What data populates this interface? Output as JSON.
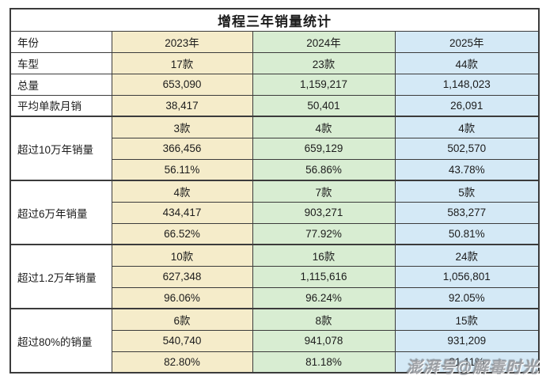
{
  "watermark": {
    "text": "澎湃号@解毒时光"
  },
  "colors": {
    "col_2023_bg": "#f5ecca",
    "col_2024_bg": "#d8edd2",
    "col_2025_bg": "#d4e9f6",
    "border": "#3b3b3b",
    "text": "#1c1c1c"
  },
  "chart_data": {
    "type": "table",
    "title": "增程三年销量统计",
    "header": {
      "label": "年份",
      "years": [
        "2023年",
        "2024年",
        "2025年"
      ]
    },
    "simple_rows": [
      {
        "label": "车型",
        "values": [
          "17款",
          "23款",
          "44款"
        ]
      },
      {
        "label": "总量",
        "values": [
          "653,090",
          "1,159,217",
          "1,148,023"
        ]
      },
      {
        "label": "平均单款月销",
        "values": [
          "38,417",
          "50,401",
          "26,091"
        ]
      }
    ],
    "groups": [
      {
        "label": "超过10万年销量",
        "rows": [
          [
            "3款",
            "4款",
            "4款"
          ],
          [
            "366,456",
            "659,129",
            "502,570"
          ],
          [
            "56.11%",
            "56.86%",
            "43.78%"
          ]
        ]
      },
      {
        "label": "超过6万年销量",
        "rows": [
          [
            "4款",
            "7款",
            "5款"
          ],
          [
            "434,417",
            "903,271",
            "583,277"
          ],
          [
            "66.52%",
            "77.92%",
            "50.81%"
          ]
        ]
      },
      {
        "label": "超过1.2万年销量",
        "rows": [
          [
            "10款",
            "16款",
            "24款"
          ],
          [
            "627,348",
            "1,115,616",
            "1,056,801"
          ],
          [
            "96.06%",
            "96.24%",
            "92.05%"
          ]
        ]
      },
      {
        "label": "超过80%的销量",
        "rows": [
          [
            "6款",
            "8款",
            "15款"
          ],
          [
            "540,740",
            "941,078",
            "931,209"
          ],
          [
            "82.80%",
            "81.18%",
            "81.11%"
          ]
        ]
      }
    ]
  }
}
